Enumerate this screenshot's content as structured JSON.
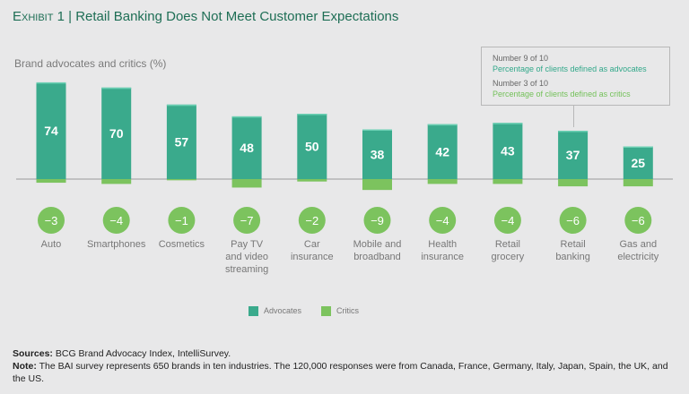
{
  "header": {
    "exhibit": "Exhibit 1",
    "separator": "|",
    "title": "Retail Banking Does Not Meet Customer Expectations"
  },
  "callout": {
    "adv_rank": "Number 9 of 10",
    "adv_text": "Percentage of clients defined as advocates",
    "crit_rank": "Number 3 of 10",
    "crit_text": "Percentage of clients defined as critics"
  },
  "chart_data": {
    "type": "bar",
    "title": "",
    "ylabel": "Brand advocates and critics (%)",
    "categories": [
      "Auto",
      "Smartphones",
      "Cosmetics",
      "Pay TV and video streaming",
      "Car insurance",
      "Mobile and broadband",
      "Health insurance",
      "Retail grocery",
      "Retail banking",
      "Gas and electricity"
    ],
    "category_lines": [
      [
        "Auto"
      ],
      [
        "Smartphones"
      ],
      [
        "Cosmetics"
      ],
      [
        "Pay TV",
        "and video",
        "streaming"
      ],
      [
        "Car",
        "insurance"
      ],
      [
        "Mobile and",
        "broadband"
      ],
      [
        "Health",
        "insurance"
      ],
      [
        "Retail",
        "grocery"
      ],
      [
        "Retail",
        "banking"
      ],
      [
        "Gas and",
        "electricity"
      ]
    ],
    "series": [
      {
        "name": "Advocates",
        "values": [
          74,
          70,
          57,
          48,
          50,
          38,
          42,
          43,
          37,
          25
        ],
        "color": "#3aaa8c"
      },
      {
        "name": "Critics",
        "values": [
          -3,
          -4,
          -1,
          -7,
          -2,
          -9,
          -4,
          -4,
          -6,
          -6
        ],
        "color": "#7cc35e"
      }
    ],
    "legend": "bottom-center",
    "grid": false
  },
  "footer": {
    "sources_label": "Sources:",
    "sources": " BCG Brand Advocacy Index, IntelliSurvey.",
    "note_label": "Note:",
    "note": " The BAI survey represents 650 brands in ten industries. The 120,000 responses were from Canada, France, Germany, Italy, Japan, Spain, the UK, and the US."
  }
}
